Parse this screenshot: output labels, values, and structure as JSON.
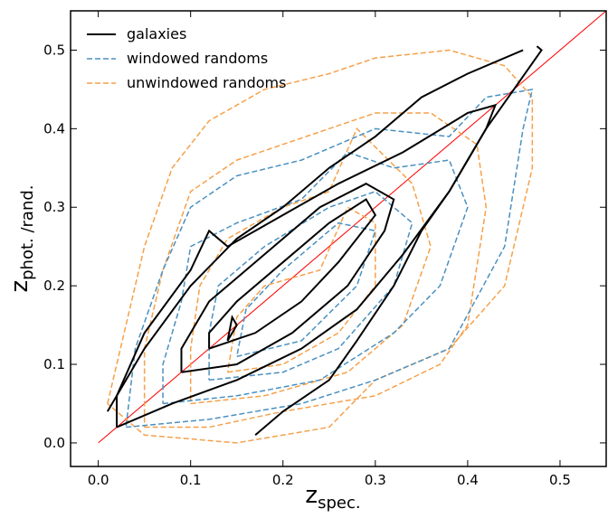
{
  "chart_data": {
    "type": "contour",
    "xlabel": "z",
    "xlabel_sub": "spec.",
    "ylabel": "z",
    "ylabel_sub": "phot. /rand.",
    "xlim": [
      -0.03,
      0.55
    ],
    "ylim": [
      -0.03,
      0.55
    ],
    "xticks": [
      {
        "value": 0,
        "label": "0.0"
      },
      0.1,
      0.2,
      0.3,
      0.4,
      0.5
    ],
    "yticks": [
      {
        "value": 0,
        "label": "0.0"
      },
      0.1,
      0.2,
      0.3,
      0.4,
      0.5
    ],
    "legend": "upper left",
    "identity_line": {
      "x": [
        0,
        0.55
      ],
      "y": [
        0,
        0.55
      ],
      "color": "#ff0000"
    },
    "series": [
      {
        "name": "galaxies",
        "color": "#000000",
        "dashed": false,
        "contours": [
          {
            "x": [
              0.01,
              0.05,
              0.1,
              0.15,
              0.2,
              0.25,
              0.3,
              0.35,
              0.4,
              0.46
            ],
            "y": [
              0.04,
              0.12,
              0.2,
              0.26,
              0.3,
              0.35,
              0.39,
              0.44,
              0.47,
              0.5
            ]
          },
          {
            "x": [
              0.17,
              0.2,
              0.25,
              0.28,
              0.32,
              0.35,
              0.38,
              0.42,
              0.45,
              0.48,
              0.475
            ],
            "y": [
              0.01,
              0.04,
              0.08,
              0.13,
              0.2,
              0.27,
              0.32,
              0.4,
              0.45,
              0.5,
              0.505
            ]
          },
          {
            "x": [
              0.02,
              0.08,
              0.15,
              0.22,
              0.28,
              0.33,
              0.38,
              0.42,
              0.43,
              0.4,
              0.33,
              0.26,
              0.2,
              0.14,
              0.12,
              0.1,
              0.05,
              0.02,
              0.02
            ],
            "y": [
              0.02,
              0.05,
              0.08,
              0.12,
              0.17,
              0.24,
              0.32,
              0.4,
              0.43,
              0.42,
              0.37,
              0.33,
              0.29,
              0.25,
              0.27,
              0.22,
              0.14,
              0.06,
              0.02
            ]
          },
          {
            "x": [
              0.09,
              0.15,
              0.21,
              0.27,
              0.31,
              0.32,
              0.29,
              0.24,
              0.18,
              0.12,
              0.09,
              0.09
            ],
            "y": [
              0.09,
              0.1,
              0.14,
              0.2,
              0.27,
              0.31,
              0.33,
              0.3,
              0.24,
              0.18,
              0.12,
              0.09
            ]
          },
          {
            "x": [
              0.12,
              0.17,
              0.22,
              0.26,
              0.3,
              0.29,
              0.25,
              0.2,
              0.15,
              0.12,
              0.12
            ],
            "y": [
              0.12,
              0.14,
              0.18,
              0.23,
              0.29,
              0.31,
              0.28,
              0.23,
              0.18,
              0.14,
              0.12
            ]
          },
          {
            "x": [
              0.14,
              0.15,
              0.145,
              0.14
            ],
            "y": [
              0.13,
              0.15,
              0.16,
              0.13
            ]
          }
        ]
      },
      {
        "name": "windowed randoms",
        "color": "#4a90c0",
        "dashed": true,
        "contours": [
          {
            "x": [
              0.03,
              0.12,
              0.22,
              0.3,
              0.38,
              0.44,
              0.46,
              0.47,
              0.42,
              0.38,
              0.3,
              0.22,
              0.15,
              0.1,
              0.07,
              0.04,
              0.03
            ],
            "y": [
              0.02,
              0.03,
              0.05,
              0.08,
              0.12,
              0.25,
              0.4,
              0.45,
              0.44,
              0.39,
              0.4,
              0.36,
              0.34,
              0.3,
              0.22,
              0.12,
              0.02
            ]
          },
          {
            "x": [
              0.07,
              0.15,
              0.24,
              0.32,
              0.37,
              0.4,
              0.38,
              0.32,
              0.27,
              0.22,
              0.15,
              0.1,
              0.09,
              0.07,
              0.07
            ],
            "y": [
              0.05,
              0.06,
              0.08,
              0.14,
              0.2,
              0.3,
              0.36,
              0.35,
              0.37,
              0.31,
              0.28,
              0.25,
              0.18,
              0.1,
              0.05
            ]
          },
          {
            "x": [
              0.12,
              0.2,
              0.26,
              0.32,
              0.34,
              0.3,
              0.25,
              0.18,
              0.13,
              0.12,
              0.12
            ],
            "y": [
              0.08,
              0.09,
              0.12,
              0.2,
              0.28,
              0.32,
              0.3,
              0.25,
              0.2,
              0.14,
              0.08
            ]
          },
          {
            "x": [
              0.15,
              0.22,
              0.28,
              0.3,
              0.26,
              0.2,
              0.16,
              0.15
            ],
            "y": [
              0.11,
              0.13,
              0.2,
              0.27,
              0.28,
              0.22,
              0.17,
              0.11
            ]
          }
        ]
      },
      {
        "name": "unwindowed randoms",
        "color": "#f5a04a",
        "dashed": true,
        "contours": [
          {
            "x": [
              0.01,
              0.02,
              0.05,
              0.08,
              0.12,
              0.18,
              0.25,
              0.3,
              0.38,
              0.44,
              0.47,
              0.47,
              0.44,
              0.38,
              0.3,
              0.25,
              0.15,
              0.05,
              0.01
            ],
            "y": [
              0.05,
              0.1,
              0.25,
              0.35,
              0.41,
              0.45,
              0.47,
              0.49,
              0.5,
              0.48,
              0.44,
              0.35,
              0.2,
              0.12,
              0.08,
              0.02,
              0.0,
              0.01,
              0.05
            ]
          },
          {
            "x": [
              0.05,
              0.12,
              0.2,
              0.3,
              0.37,
              0.4,
              0.42,
              0.41,
              0.36,
              0.3,
              0.25,
              0.2,
              0.15,
              0.1,
              0.07,
              0.05,
              0.05
            ],
            "y": [
              0.02,
              0.02,
              0.04,
              0.06,
              0.1,
              0.15,
              0.3,
              0.38,
              0.42,
              0.42,
              0.4,
              0.38,
              0.36,
              0.32,
              0.22,
              0.12,
              0.02
            ]
          },
          {
            "x": [
              0.1,
              0.18,
              0.27,
              0.33,
              0.36,
              0.34,
              0.28,
              0.25,
              0.2,
              0.14,
              0.11,
              0.1,
              0.1
            ],
            "y": [
              0.05,
              0.06,
              0.09,
              0.15,
              0.25,
              0.33,
              0.4,
              0.32,
              0.3,
              0.26,
              0.2,
              0.12,
              0.05
            ]
          },
          {
            "x": [
              0.14,
              0.2,
              0.26,
              0.3,
              0.3,
              0.27,
              0.24,
              0.18,
              0.15,
              0.14
            ],
            "y": [
              0.09,
              0.1,
              0.14,
              0.2,
              0.28,
              0.3,
              0.22,
              0.2,
              0.16,
              0.09
            ]
          }
        ]
      }
    ]
  }
}
